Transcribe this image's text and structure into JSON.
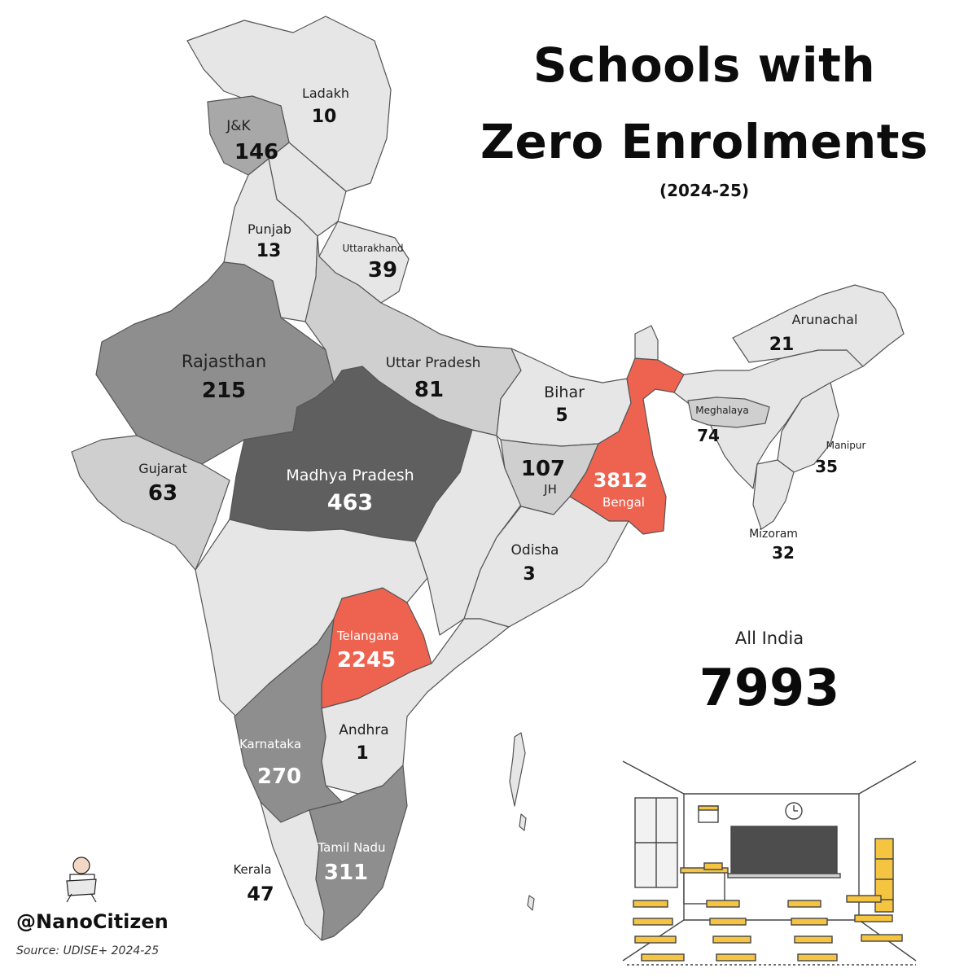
{
  "title_line1": "Schools with",
  "title_line2": "Zero Enrolments",
  "subtitle": "(2024-25)",
  "all_india": {
    "label": "All India",
    "value": "7993"
  },
  "credit": "@NanoCitizen",
  "source": "Source: UDISE+ 2024-25",
  "colors": {
    "highest": "#ee6350",
    "very_high": "#5f5f5f",
    "high": "#8e8e8e",
    "medium": "#a8a8a8",
    "low": "#cfcfcf",
    "lowest": "#e6e6e6",
    "border": "#555555"
  },
  "states": [
    {
      "name": "Ladakh",
      "value": "10"
    },
    {
      "name": "J&K",
      "value": "146"
    },
    {
      "name": "Punjab",
      "value": "13"
    },
    {
      "name": "Uttarakhand",
      "value": "39"
    },
    {
      "name": "Rajasthan",
      "value": "215"
    },
    {
      "name": "Uttar Pradesh",
      "value": "81"
    },
    {
      "name": "Bihar",
      "value": "5"
    },
    {
      "name": "Gujarat",
      "value": "63"
    },
    {
      "name": "Madhya Pradesh",
      "value": "463"
    },
    {
      "name": "JH",
      "value": "107"
    },
    {
      "name": "Bengal",
      "value": "3812"
    },
    {
      "name": "Odisha",
      "value": "3"
    },
    {
      "name": "Telangana",
      "value": "2245"
    },
    {
      "name": "Andhra",
      "value": "1"
    },
    {
      "name": "Karnataka",
      "value": "270"
    },
    {
      "name": "Tamil Nadu",
      "value": "311"
    },
    {
      "name": "Kerala",
      "value": "47"
    },
    {
      "name": "Arunachal",
      "value": "21"
    },
    {
      "name": "Meghalaya",
      "value": "74"
    },
    {
      "name": "Manipur",
      "value": "35"
    },
    {
      "name": "Mizoram",
      "value": "32"
    }
  ]
}
